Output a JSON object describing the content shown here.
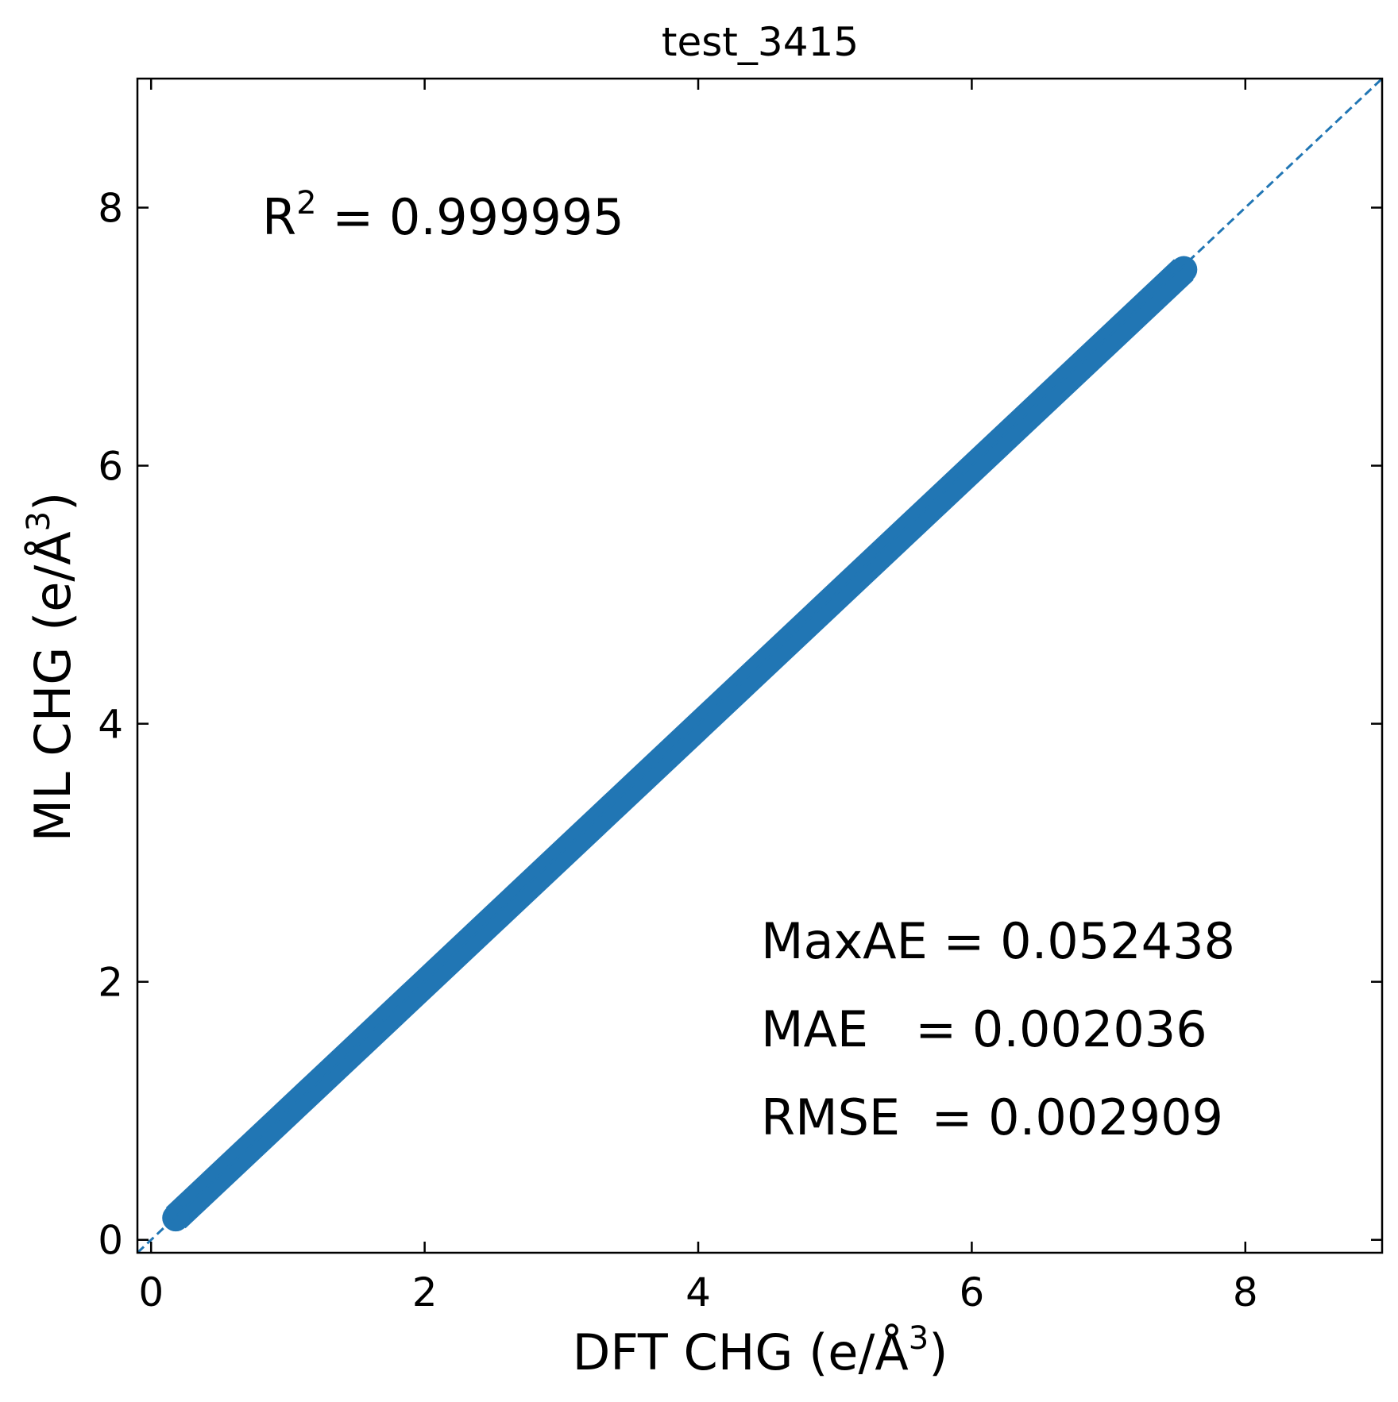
{
  "chart_data": {
    "type": "scatter",
    "title": "test_3415",
    "xlabel": "DFT CHG (e/Å3)",
    "ylabel": "ML CHG (e/Å3)",
    "xlabel_parts": {
      "pre": "DFT CHG (e/Å",
      "sup": "3",
      "post": ")"
    },
    "ylabel_parts": {
      "pre": "ML CHG (e/Å",
      "sup": "3",
      "post": ")"
    },
    "xlim": [
      -0.1,
      9.0
    ],
    "ylim": [
      -0.1,
      9.0
    ],
    "xticks": [
      0,
      2,
      4,
      6,
      8
    ],
    "yticks": [
      0,
      2,
      4,
      6,
      8
    ],
    "xtick_labels": [
      "0",
      "2",
      "4",
      "6",
      "8"
    ],
    "ytick_labels": [
      "0",
      "2",
      "4",
      "6",
      "8"
    ],
    "grid": false,
    "series": [
      {
        "points": [
          [
            0.18,
            0.17
          ],
          [
            7.55,
            7.52
          ]
        ]
      }
    ],
    "reference_line": {
      "style": "dashed",
      "from": [
        -0.1,
        -0.1
      ],
      "to": [
        9.0,
        9.0
      ]
    },
    "annotations": {
      "r2_label": "R",
      "r2_sup": "2",
      "r2_value": " = 0.999995",
      "maxae": "MaxAE = 0.052438",
      "mae": "MAE   = 0.002036",
      "rmse": "RMSE  = 0.002909"
    },
    "colors": {
      "points": "#2176b4",
      "reference_line": "#2176b4",
      "axes": "#000000"
    }
  }
}
